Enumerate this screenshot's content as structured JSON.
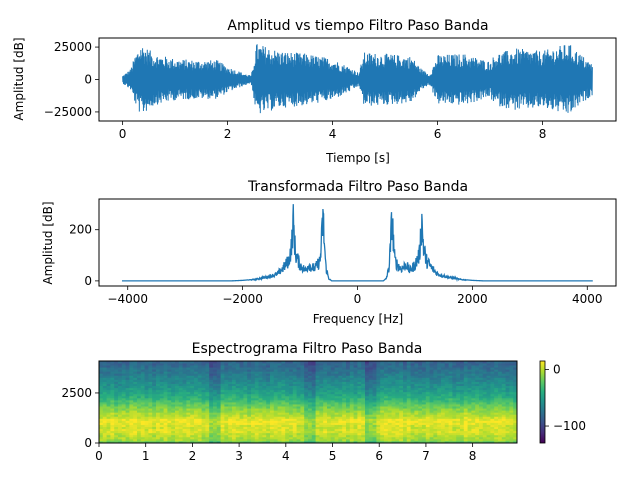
{
  "chart_data": [
    {
      "type": "line",
      "title": "Amplitud vs tiempo Filtro Paso Banda",
      "xlabel": "Tiempo [s]",
      "ylabel": "Amplitud [dB]",
      "xlim": [
        -0.45,
        9.4
      ],
      "ylim": [
        -32000,
        32000
      ],
      "xticks": [
        0,
        2,
        4,
        6,
        8
      ],
      "xtick_labels": [
        "0",
        "2",
        "4",
        "6",
        "8"
      ],
      "yticks": [
        25000,
        0,
        -25000
      ],
      "ytick_labels": [
        "25000",
        "0",
        "−25000"
      ],
      "color": "#1f77b4",
      "envelope": {
        "t": [
          0,
          0.15,
          0.25,
          0.35,
          0.6,
          1.0,
          1.4,
          1.8,
          2.0,
          2.3,
          2.45,
          2.55,
          2.7,
          3.0,
          3.5,
          4.0,
          4.4,
          4.5,
          4.6,
          5.0,
          5.5,
          5.7,
          5.85,
          6.0,
          6.5,
          7.0,
          7.1,
          7.5,
          8.0,
          8.5,
          8.8,
          8.95
        ],
        "amplitude": [
          3000,
          8000,
          20000,
          28000,
          20000,
          16000,
          15000,
          15000,
          10000,
          5000,
          3000,
          28000,
          26000,
          22000,
          20000,
          16000,
          8000,
          5000,
          21000,
          20000,
          18000,
          8000,
          4000,
          19000,
          20000,
          14000,
          20000,
          24000,
          22000,
          28000,
          17000,
          12000
        ]
      }
    },
    {
      "type": "line",
      "title": "Transformada Filtro Paso Banda",
      "xlabel": "Frequency [Hz]",
      "ylabel": "Amplitud [dB]",
      "xlim": [
        -4500,
        4500
      ],
      "ylim": [
        -20,
        320
      ],
      "xticks": [
        -4000,
        -2000,
        0,
        2000,
        4000
      ],
      "xtick_labels": [
        "−4000",
        "−2000",
        "0",
        "2000",
        "4000"
      ],
      "yticks": [
        0,
        200
      ],
      "ytick_labels": [
        "0",
        "200"
      ],
      "color": "#1f77b4",
      "x": [
        -4100,
        -2200,
        -2000,
        -1800,
        -1600,
        -1400,
        -1300,
        -1200,
        -1150,
        -1120,
        -1100,
        -1080,
        -1000,
        -900,
        -850,
        -800,
        -750,
        -700,
        -650,
        -620,
        -600,
        -580,
        -550,
        -500,
        -450,
        0,
        450,
        500,
        550,
        580,
        600,
        620,
        650,
        700,
        750,
        800,
        850,
        900,
        1000,
        1080,
        1100,
        1120,
        1150,
        1200,
        1300,
        1400,
        1600,
        1800,
        2000,
        2200,
        4100
      ],
      "y": [
        0,
        0,
        2,
        6,
        15,
        30,
        55,
        90,
        150,
        265,
        200,
        120,
        70,
        45,
        75,
        60,
        55,
        70,
        90,
        200,
        295,
        180,
        60,
        10,
        0,
        0,
        0,
        10,
        60,
        180,
        295,
        200,
        90,
        70,
        55,
        60,
        75,
        45,
        70,
        120,
        200,
        265,
        150,
        90,
        55,
        30,
        15,
        6,
        2,
        0,
        0
      ]
    },
    {
      "type": "heatmap",
      "title": "Espectrograma Filtro Paso Banda",
      "xlim": [
        0,
        8.95
      ],
      "ylim": [
        0,
        4096
      ],
      "xticks": [
        0,
        1,
        2,
        3,
        4,
        5,
        6,
        7,
        8
      ],
      "xtick_labels": [
        "0",
        "1",
        "2",
        "3",
        "4",
        "5",
        "6",
        "7",
        "8"
      ],
      "yticks": [
        0,
        2500
      ],
      "ytick_labels": [
        "0",
        "2500"
      ],
      "colormap": "viridis",
      "colorbar": {
        "range": [
          -130,
          15
        ],
        "ticks": [
          0,
          -100
        ],
        "tick_labels": [
          "0",
          "−100"
        ]
      },
      "frequency_profile": {
        "freq_hz": [
          0,
          150,
          400,
          600,
          800,
          1000,
          1150,
          1300,
          1600,
          1900,
          2300,
          2800,
          3400,
          4096
        ],
        "level_db": [
          -30,
          -5,
          0,
          8,
          4,
          10,
          12,
          2,
          -8,
          -20,
          -40,
          -55,
          -70,
          -85
        ]
      },
      "quiet_times_s": [
        2.5,
        4.5,
        5.8
      ]
    }
  ]
}
